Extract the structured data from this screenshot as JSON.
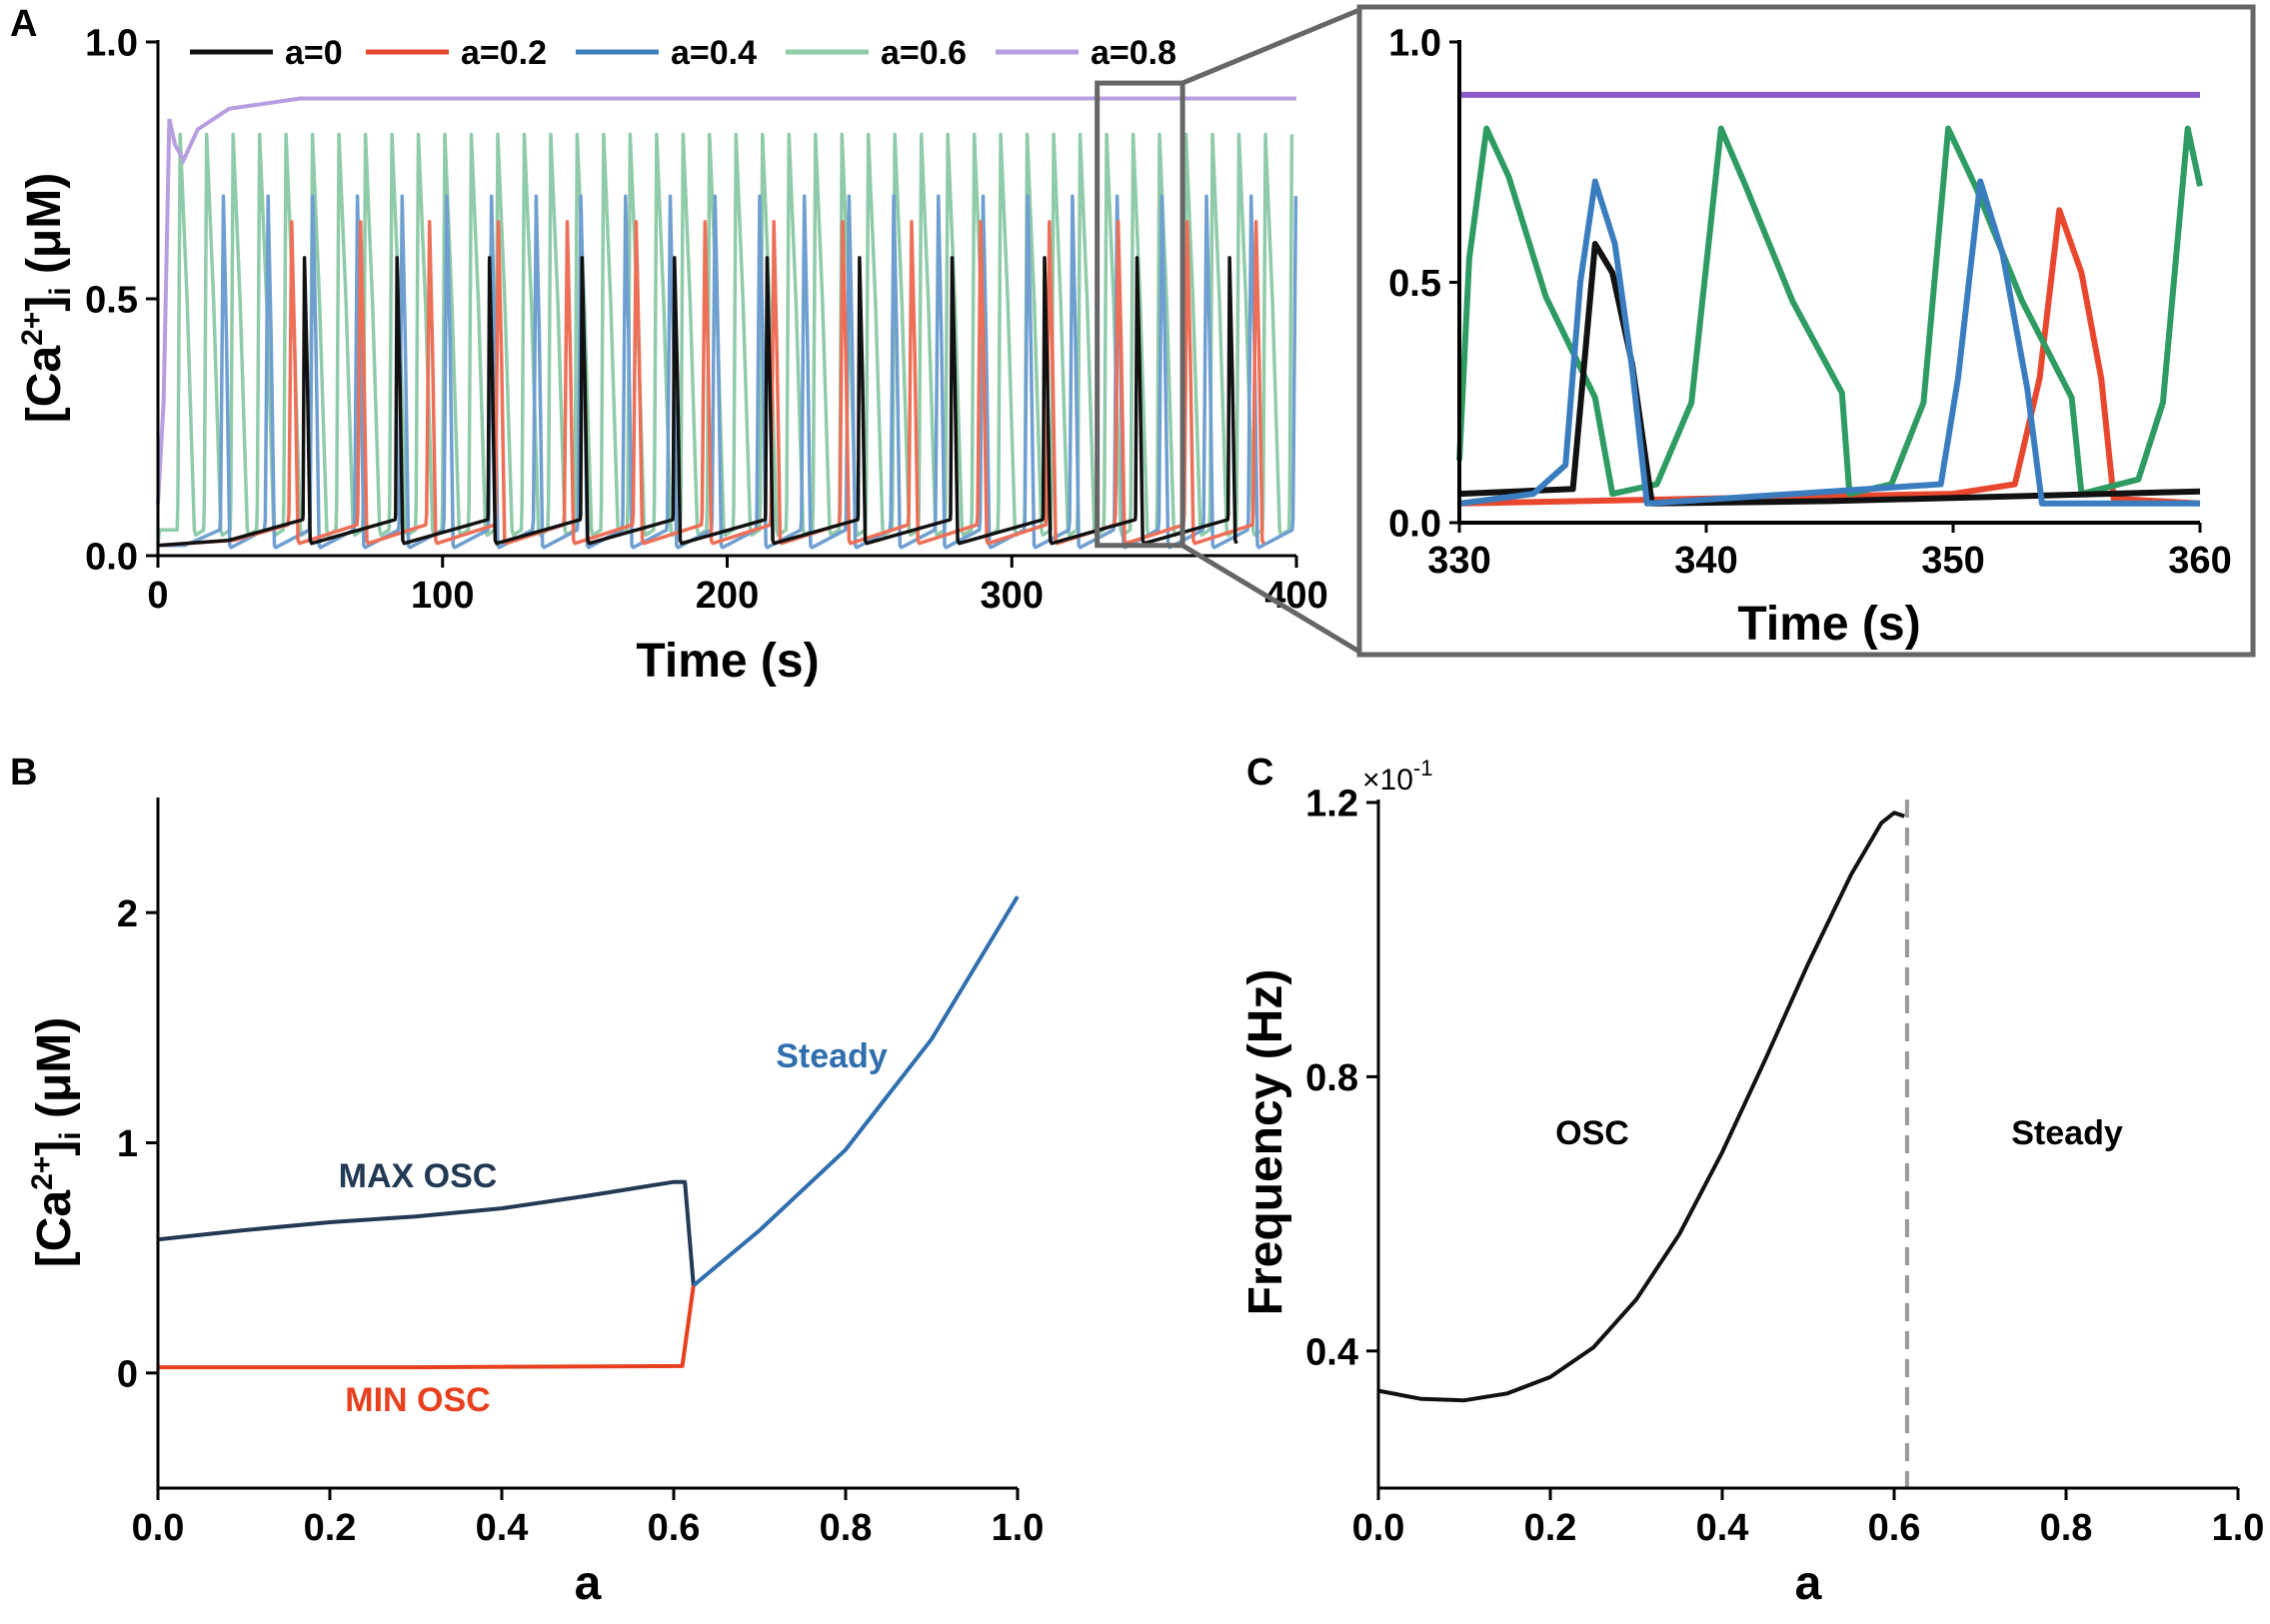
{
  "panels": {
    "a": "A",
    "b": "B",
    "c": "C"
  },
  "colors": {
    "black": "#111111",
    "red": "#e8472e",
    "blue": "#3a7dbf",
    "green": "#2e9b62",
    "purple": "#8e5ac8",
    "navy": "#233a55",
    "steady_blue": "#2f6fad",
    "min_red": "#e8401e",
    "gray": "#666666"
  },
  "chart_data": [
    {
      "id": "A-main",
      "type": "line",
      "ylabel": "[Ca2+]i (μM)",
      "ylabel_parts": {
        "base": "[Ca",
        "sup": "2+",
        "mid": "]",
        "sub": "i",
        "unit": " (μM)"
      },
      "xlabel": "Time (s)",
      "xlim": [
        0,
        400
      ],
      "ylim": [
        0,
        1.0
      ],
      "xticks": [
        "0",
        "100",
        "200",
        "300",
        "400"
      ],
      "yticks": [
        "0.0",
        "0.5",
        "1.0"
      ],
      "series": [
        {
          "name": "a=0",
          "color": "#111111",
          "period": 32.5,
          "first_spike": 51,
          "peak": 0.58,
          "base": 0.03,
          "rise": 0.5,
          "fall": 2.0,
          "baseline_rise": 0.04
        },
        {
          "name": "a=0.2",
          "color": "#e8472e",
          "period": 24.2,
          "first_spike": 46,
          "peak": 0.65,
          "base": 0.03,
          "rise": 1.0,
          "fall": 2.2,
          "baseline_rise": 0.03
        },
        {
          "name": "a=0.4",
          "color": "#3a7dbf",
          "period": 15.7,
          "first_spike": 22,
          "peak": 0.7,
          "base": 0.02,
          "rise": 1.0,
          "fall": 2.2,
          "baseline_rise": 0.03
        },
        {
          "name": "a=0.6",
          "color": "#2e9b62",
          "period": 9.3,
          "first_spike": 7,
          "peak": 0.82,
          "base": 0.05,
          "rise": 0.8,
          "fall": 5.0,
          "baseline_rise": 0.0
        },
        {
          "name": "a=0.8",
          "color": "#8e5ac8",
          "steady": 0.89,
          "transient_peak": 0.85,
          "transient_dip": 0.77
        }
      ],
      "inset_box": {
        "x": [
          330,
          360
        ],
        "y": [
          0.02,
          0.92
        ]
      }
    },
    {
      "id": "A-zoom",
      "type": "line",
      "xlabel": "Time (s)",
      "xlim": [
        330,
        360
      ],
      "ylim": [
        0,
        1.0
      ],
      "xticks": [
        "330",
        "340",
        "350",
        "360"
      ],
      "yticks": [
        "0.0",
        "0.5",
        "1.0"
      ],
      "series": [
        {
          "name": "a=0",
          "color": "#111111",
          "points": [
            [
              330,
              0.06
            ],
            [
              334.6,
              0.07
            ],
            [
              335.5,
              0.58
            ],
            [
              336.2,
              0.52
            ],
            [
              337.0,
              0.33
            ],
            [
              337.8,
              0.04
            ],
            [
              345,
              0.045
            ],
            [
              360,
              0.065
            ]
          ]
        },
        {
          "name": "a=0.2",
          "color": "#e8472e",
          "points": [
            [
              330,
              0.04
            ],
            [
              340,
              0.05
            ],
            [
              350,
              0.06
            ],
            [
              352.5,
              0.08
            ],
            [
              353.5,
              0.3
            ],
            [
              354.3,
              0.65
            ],
            [
              355.2,
              0.52
            ],
            [
              356.0,
              0.3
            ],
            [
              356.5,
              0.05
            ],
            [
              360,
              0.04
            ]
          ]
        },
        {
          "name": "a=0.4",
          "color": "#3a7dbf",
          "points": [
            [
              330,
              0.04
            ],
            [
              333,
              0.06
            ],
            [
              334.3,
              0.12
            ],
            [
              334.9,
              0.5
            ],
            [
              335.5,
              0.71
            ],
            [
              336.3,
              0.58
            ],
            [
              337.0,
              0.32
            ],
            [
              337.6,
              0.04
            ],
            [
              349.5,
              0.08
            ],
            [
              350.2,
              0.3
            ],
            [
              351.1,
              0.71
            ],
            [
              352,
              0.56
            ],
            [
              353.0,
              0.28
            ],
            [
              353.6,
              0.04
            ],
            [
              360,
              0.04
            ]
          ]
        },
        {
          "name": "a=0.6",
          "color": "#2e9b62",
          "points": [
            [
              330,
              0.13
            ],
            [
              330.4,
              0.55
            ],
            [
              331.1,
              0.82
            ],
            [
              332.0,
              0.72
            ],
            [
              333.5,
              0.47
            ],
            [
              335.5,
              0.26
            ],
            [
              336.2,
              0.06
            ],
            [
              338,
              0.08
            ],
            [
              339.4,
              0.25
            ],
            [
              340.6,
              0.82
            ],
            [
              341.6,
              0.7
            ],
            [
              343.5,
              0.46
            ],
            [
              345.5,
              0.27
            ],
            [
              345.8,
              0.06
            ],
            [
              347.5,
              0.08
            ],
            [
              348.8,
              0.25
            ],
            [
              349.8,
              0.82
            ],
            [
              350.9,
              0.7
            ],
            [
              352.8,
              0.46
            ],
            [
              354.8,
              0.26
            ],
            [
              355.2,
              0.06
            ],
            [
              357.5,
              0.09
            ],
            [
              358.5,
              0.25
            ],
            [
              359.5,
              0.82
            ],
            [
              360,
              0.7
            ]
          ]
        },
        {
          "name": "a=0.8",
          "color": "#8e5ac8",
          "points": [
            [
              330,
              0.89
            ],
            [
              360,
              0.89
            ]
          ]
        }
      ]
    },
    {
      "id": "B",
      "type": "line",
      "xlabel": "a",
      "ylabel": "[Ca2+]i (μM)",
      "ylabel_parts": {
        "base": "[Ca",
        "sup": "2+",
        "mid": "]",
        "sub": "i",
        "unit": " (μM)"
      },
      "xlim": [
        0,
        1.0
      ],
      "ylim": [
        -0.5,
        2.5
      ],
      "xticks": [
        "0.0",
        "0.2",
        "0.4",
        "0.6",
        "0.8",
        "1.0"
      ],
      "yticks": [
        "0",
        "1",
        "2"
      ],
      "series": [
        {
          "name": "MAX OSC",
          "color": "#233a55",
          "points": [
            [
              0,
              0.58
            ],
            [
              0.1,
              0.62
            ],
            [
              0.2,
              0.655
            ],
            [
              0.3,
              0.68
            ],
            [
              0.4,
              0.715
            ],
            [
              0.5,
              0.77
            ],
            [
              0.6,
              0.83
            ],
            [
              0.613,
              0.83
            ],
            [
              0.623,
              0.38
            ]
          ]
        },
        {
          "name": "MIN OSC",
          "color": "#e8401e",
          "points": [
            [
              0,
              0.025
            ],
            [
              0.3,
              0.025
            ],
            [
              0.61,
              0.03
            ],
            [
              0.623,
              0.38
            ]
          ]
        },
        {
          "name": "Steady",
          "color": "#2f6fad",
          "points": [
            [
              0.623,
              0.38
            ],
            [
              0.7,
              0.62
            ],
            [
              0.8,
              0.97
            ],
            [
              0.9,
              1.45
            ],
            [
              1.0,
              2.07
            ]
          ]
        }
      ],
      "annotations": {
        "max": "MAX OSC",
        "min": "MIN OSC",
        "steady": "Steady"
      }
    },
    {
      "id": "C",
      "type": "line",
      "xlabel": "a",
      "ylabel": "Frequency (Hz)",
      "xlim": [
        0,
        1.0
      ],
      "ylim": [
        0.2,
        1.2
      ],
      "xticks": [
        "0.0",
        "0.2",
        "0.4",
        "0.6",
        "0.8",
        "1.0"
      ],
      "yticks": [
        "0.4",
        "0.8",
        "1.2"
      ],
      "multiplier": "×10",
      "multiplier_exp": "-1",
      "threshold": 0.615,
      "series": [
        {
          "name": "frequency",
          "color": "#111111",
          "points": [
            [
              0,
              0.342
            ],
            [
              0.05,
              0.33
            ],
            [
              0.1,
              0.328
            ],
            [
              0.15,
              0.338
            ],
            [
              0.2,
              0.362
            ],
            [
              0.25,
              0.405
            ],
            [
              0.3,
              0.475
            ],
            [
              0.35,
              0.57
            ],
            [
              0.4,
              0.69
            ],
            [
              0.45,
              0.825
            ],
            [
              0.5,
              0.965
            ],
            [
              0.55,
              1.095
            ],
            [
              0.585,
              1.17
            ],
            [
              0.6,
              1.185
            ],
            [
              0.612,
              1.18
            ]
          ]
        }
      ],
      "regions": {
        "left": "OSC",
        "right": "Steady"
      }
    }
  ]
}
